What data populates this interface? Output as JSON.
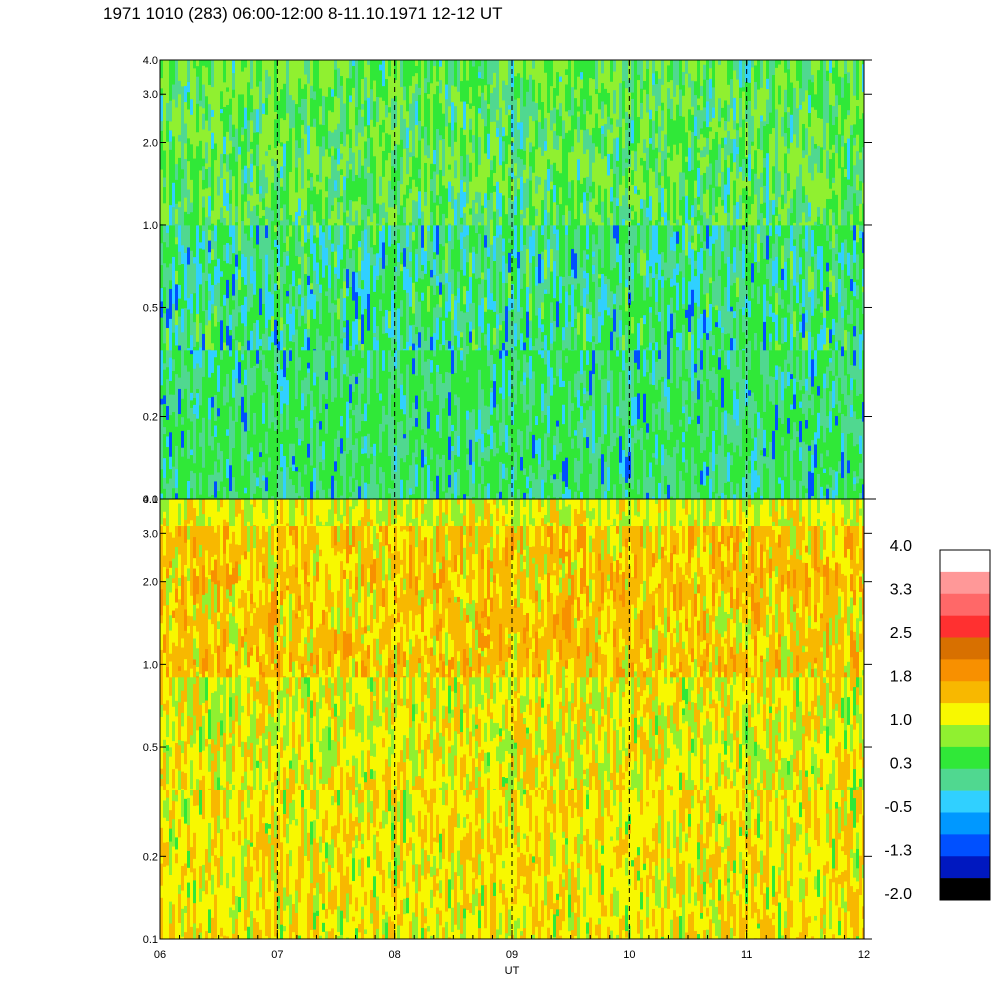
{
  "title": "1971 1010 (283) 06:00-12:00 8-11.10.1971  12-12 UT",
  "chart_data": [
    {
      "type": "heatmap",
      "panel": "upper",
      "xlabel": "",
      "ylabel": "",
      "ylog": true,
      "ylim": [
        0.1,
        4.0
      ],
      "ytick_values": [
        0.1,
        0.2,
        0.5,
        1.0,
        2.0,
        3.0,
        4.0
      ],
      "ytick_labels": [
        "0.1",
        "0.2",
        "0.5",
        "1.0",
        "2.0",
        "3.0",
        "4.0"
      ],
      "dominant_levels": [
        "-0.5",
        "0.3",
        "1.0"
      ],
      "bands": [
        {
          "from": 0.1,
          "to": 0.35,
          "mix": [
            [
              "#30e838",
              0.5
            ],
            [
              "#50d890",
              0.35
            ],
            [
              "#30d0ff",
              0.1
            ],
            [
              "#0050ff",
              0.05
            ]
          ]
        },
        {
          "from": 0.35,
          "to": 1.0,
          "mix": [
            [
              "#30e838",
              0.4
            ],
            [
              "#50d890",
              0.3
            ],
            [
              "#30d0ff",
              0.2
            ],
            [
              "#0050ff",
              0.05
            ],
            [
              "#90f030",
              0.05
            ]
          ]
        },
        {
          "from": 1.0,
          "to": 4.0,
          "mix": [
            [
              "#90f030",
              0.4
            ],
            [
              "#30e838",
              0.3
            ],
            [
              "#50d890",
              0.25
            ],
            [
              "#30d0ff",
              0.05
            ]
          ]
        }
      ]
    },
    {
      "type": "heatmap",
      "panel": "lower",
      "xlabel": "UT",
      "ylabel": "",
      "ylog": true,
      "xlim": [
        6,
        12
      ],
      "x_ticks": [
        "06",
        "07",
        "08",
        "09",
        "10",
        "11",
        "12"
      ],
      "ylim": [
        0.1,
        4.0
      ],
      "ytick_values": [
        0.1,
        0.2,
        0.5,
        1.0,
        2.0,
        3.0,
        4.0
      ],
      "ytick_labels": [
        "0.1",
        "0.2",
        "0.5",
        "1.0",
        "2.0",
        "3.0",
        "4.0"
      ],
      "dominant_levels": [
        "1.0",
        "1.8"
      ],
      "bands": [
        {
          "from": 0.1,
          "to": 0.35,
          "mix": [
            [
              "#f8f800",
              0.5
            ],
            [
              "#f8b800",
              0.3
            ],
            [
              "#90f030",
              0.15
            ],
            [
              "#30e838",
              0.05
            ]
          ]
        },
        {
          "from": 0.35,
          "to": 0.9,
          "mix": [
            [
              "#f8f800",
              0.4
            ],
            [
              "#90f030",
              0.3
            ],
            [
              "#f8b800",
              0.25
            ],
            [
              "#30e838",
              0.05
            ]
          ]
        },
        {
          "from": 0.9,
          "to": 3.2,
          "mix": [
            [
              "#f8b800",
              0.45
            ],
            [
              "#f8f800",
              0.3
            ],
            [
              "#f89000",
              0.15
            ],
            [
              "#90f030",
              0.1
            ]
          ]
        },
        {
          "from": 3.2,
          "to": 4.0,
          "mix": [
            [
              "#f8f800",
              0.45
            ],
            [
              "#90f030",
              0.35
            ],
            [
              "#f8b800",
              0.2
            ]
          ]
        }
      ]
    }
  ],
  "x_axis": {
    "label": "UT",
    "ticks": [
      "06",
      "07",
      "08",
      "09",
      "10",
      "11",
      "12"
    ],
    "dashed_at": [
      7,
      8,
      9,
      10,
      11
    ]
  },
  "colorbar": {
    "labels": [
      "4.0",
      "3.3",
      "2.5",
      "1.8",
      "1.0",
      "0.3",
      "-0.5",
      "-1.3",
      "-2.0"
    ],
    "colors_top_to_bottom": [
      "#ffffff",
      "#ff9898",
      "#ff6868",
      "#ff3030",
      "#d87000",
      "#f89000",
      "#f8b800",
      "#f8f800",
      "#90f030",
      "#30e838",
      "#50d890",
      "#30d0ff",
      "#0098ff",
      "#0050ff",
      "#0018c0",
      "#000000"
    ]
  }
}
